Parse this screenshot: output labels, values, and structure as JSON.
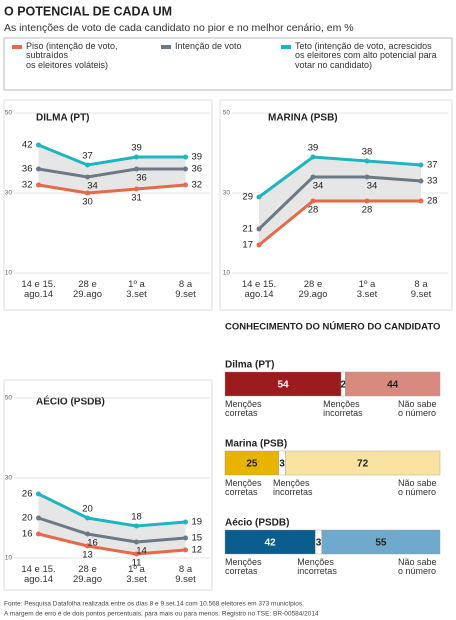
{
  "title": "O POTENCIAL DE CADA UM",
  "subtitle": "As intenções de voto de cada candidato no pior e no melhor cenário, em %",
  "legend": [
    {
      "name": "Piso (intenção de voto,\nsubtraídos\nos eleitores voláteis)",
      "color": "#e8684a"
    },
    {
      "name": "Intenção de voto",
      "color": "#6b7a86"
    },
    {
      "name": "Teto (intenção de voto, acrescidos\nos eleitores com alto potencial para\nvotar no candidato)",
      "color": "#1fb5c0"
    }
  ],
  "chart_data": [
    {
      "type": "line",
      "title": "DILMA (PT)",
      "categories": [
        "14 e 15.\nago.14",
        "28 e\n29.ago",
        "1º a\n3.set",
        "8 a\n9.set"
      ],
      "series": [
        {
          "values": [
            32,
            30,
            31,
            32
          ]
        },
        {
          "values": [
            36,
            34,
            36,
            36
          ]
        },
        {
          "values": [
            42,
            37,
            39,
            39
          ]
        }
      ],
      "ylim": [
        10,
        50
      ],
      "yticks": [
        10,
        30,
        50
      ],
      "band_color": "#e6e6e6"
    },
    {
      "type": "line",
      "title": "MARINA (PSB)",
      "categories": [
        "14 e 15.\nago.14",
        "28 e\n29.ago",
        "1º a\n3.set",
        "8 a\n9.set"
      ],
      "series": [
        {
          "values": [
            17,
            28,
            28,
            28
          ]
        },
        {
          "values": [
            21,
            34,
            34,
            33
          ]
        },
        {
          "values": [
            29,
            39,
            38,
            37
          ]
        }
      ],
      "ylim": [
        10,
        50
      ],
      "yticks": [
        10,
        30,
        50
      ],
      "band_color": "#e6e6e6"
    },
    {
      "type": "line",
      "title": "AÉCIO (PSDB)",
      "categories": [
        "14 e 15.\nago.14",
        "28 e\n29.ago",
        "1º a\n3.set",
        "8 a\n9.set"
      ],
      "series": [
        {
          "values": [
            16,
            13,
            11,
            12
          ]
        },
        {
          "values": [
            20,
            16,
            14,
            15
          ]
        },
        {
          "values": [
            26,
            20,
            18,
            19
          ]
        }
      ],
      "ylim": [
        10,
        50
      ],
      "yticks": [
        10,
        30,
        50
      ],
      "band_color": "#e6e6e6"
    },
    {
      "type": "stacked-bar",
      "title": "CONHECIMENTO DO NÚMERO DO CANDIDATO",
      "categories": [
        "Dilma (PT)",
        "Marina (PSB)",
        "Aécio (PSDB)"
      ],
      "series": [
        {
          "name": "Menções\ncorretas",
          "values": [
            54,
            25,
            42
          ],
          "colors": [
            "#9b1b1e",
            "#e8b400",
            "#0a5d8c"
          ]
        },
        {
          "name": "Menções\nincorretas",
          "values": [
            2,
            3,
            3
          ],
          "colors": [
            "#ffffff",
            "#ffffff",
            "#ffffff"
          ]
        },
        {
          "name": "Não sabe\no número",
          "values": [
            44,
            72,
            55
          ],
          "colors": [
            "#d98a7e",
            "#f8e4a0",
            "#6fa9cc"
          ]
        }
      ],
      "xlim": [
        0,
        100
      ]
    }
  ],
  "footnote": [
    "Fonte: Pesquisa Datafolha realizada entre os dias 8 e 9.set.14 com 10.568 eleitores em 373 municípios.",
    "A margem de erro é de dois pontos percentuais, para mais ou para menos. Registro no TSE: BR-00584/2014"
  ]
}
